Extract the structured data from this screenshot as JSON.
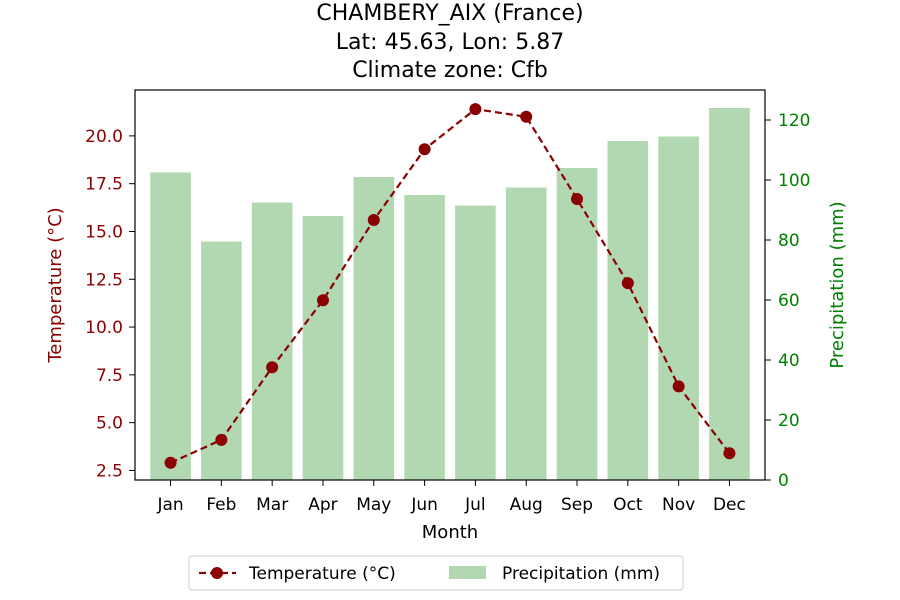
{
  "chart_data": {
    "type": "bar+line",
    "title_lines": [
      "CHAMBERY_AIX (France)",
      "Lat: 45.63, Lon: 5.87",
      "Climate zone: Cfb"
    ],
    "xlabel": "Month",
    "categories": [
      "Jan",
      "Feb",
      "Mar",
      "Apr",
      "May",
      "Jun",
      "Jul",
      "Aug",
      "Sep",
      "Oct",
      "Nov",
      "Dec"
    ],
    "series": [
      {
        "name": "Temperature (°C)",
        "kind": "line",
        "axis": "left",
        "color": "#8b0000",
        "style": "dashed with circle markers",
        "values": [
          2.9,
          4.1,
          7.9,
          11.4,
          15.6,
          19.3,
          21.4,
          21.0,
          16.7,
          12.3,
          6.9,
          3.4
        ]
      },
      {
        "name": "Precipitation (mm)",
        "kind": "bar",
        "axis": "right",
        "color": "#b2d8b2",
        "values": [
          102.5,
          79.5,
          92.5,
          88.0,
          101.0,
          95.0,
          91.5,
          97.5,
          104.0,
          113.0,
          114.5,
          124.0
        ]
      }
    ],
    "y_left": {
      "label": "Temperature (°C)",
      "color": "#8b0000",
      "ticks": [
        "2.5",
        "5.0",
        "7.5",
        "10.0",
        "12.5",
        "15.0",
        "17.5",
        "20.0"
      ],
      "range": [
        2.0,
        22.4
      ]
    },
    "y_right": {
      "label": "Precipitation (mm)",
      "color": "#008000",
      "ticks": [
        "0",
        "20",
        "40",
        "60",
        "80",
        "100",
        "120"
      ],
      "range": [
        0,
        130
      ]
    },
    "legend": {
      "placement": "bottom-center",
      "items": [
        "Temperature (°C)",
        "Precipitation (mm)"
      ]
    },
    "grid": false
  }
}
